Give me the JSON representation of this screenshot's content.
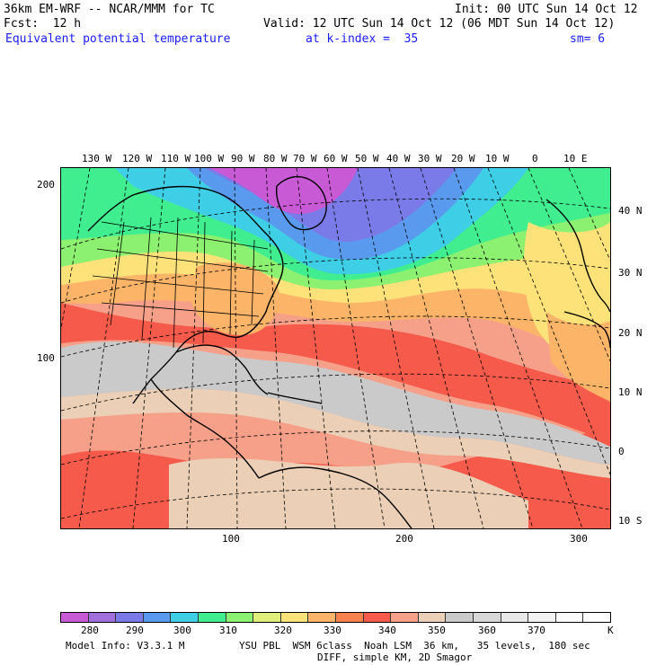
{
  "header": {
    "model": "36km EM-WRF -- NCAR/MMM for TC",
    "init": "Init: 00 UTC Sun 14 Oct 12",
    "fcst": "Fcst:  12 h",
    "valid": "Valid: 12 UTC Sun 14 Oct 12 (06 MDT Sun 14 Oct 12)",
    "field": "Equivalent potential temperature",
    "level": "at k-index =  35",
    "smoothing": "sm= 6"
  },
  "map": {
    "lon_labels": [
      "130 W",
      "120 W",
      "110 W",
      "100 W",
      "90 W",
      "80 W",
      "70 W",
      "60 W",
      "50 W",
      "40 W",
      "30 W",
      "20 W",
      "10 W",
      "0",
      "10 E"
    ],
    "lat_labels": [
      "40 N",
      "30 N",
      "20 N",
      "10 N",
      "0",
      "10 S"
    ],
    "grid_y_labels": [
      "200",
      "100"
    ],
    "grid_x_labels": [
      "100",
      "200",
      "300"
    ]
  },
  "colorbar": {
    "colors": [
      "#c95ad6",
      "#a070dc",
      "#7a7ae8",
      "#5a9aee",
      "#3ecfe6",
      "#40ee90",
      "#8cf070",
      "#dff07a",
      "#fde27a",
      "#fcb468",
      "#f8824e",
      "#f55a4a",
      "#f6a08a",
      "#ebcfb6",
      "#cacaca",
      "#d8d8d8",
      "#e8e8e8",
      "#f2f2f2",
      "#fbfbfb",
      "#ffffff"
    ],
    "labels": [
      "280",
      "290",
      "300",
      "310",
      "320",
      "330",
      "340",
      "350",
      "360",
      "370"
    ],
    "unit": "K"
  },
  "footer": {
    "model_info": "Model Info: V3.3.1 M",
    "physics": "YSU PBL  WSM 6class  Noah LSM  36 km,   35 levels,  180 sec",
    "diff": "DIFF, simple KM, 2D Smagor"
  }
}
